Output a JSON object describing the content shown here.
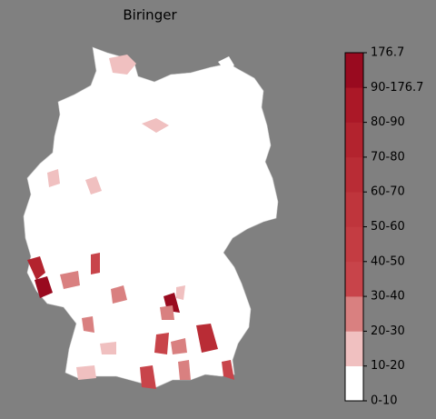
{
  "title": "Biringer",
  "colorbar": {
    "ticks": [
      "0-10",
      "10-20",
      "20-30",
      "30-40",
      "40-50",
      "50-60",
      "60-70",
      "70-80",
      "80-90",
      "90-176.7",
      "176.7"
    ],
    "colors": [
      "#ffffff",
      "#f0c0c0",
      "#d98080",
      "#c8444a",
      "#c43c42",
      "#bf353c",
      "#b92c35",
      "#b3232e",
      "#ab1827",
      "#990a1f"
    ]
  }
}
